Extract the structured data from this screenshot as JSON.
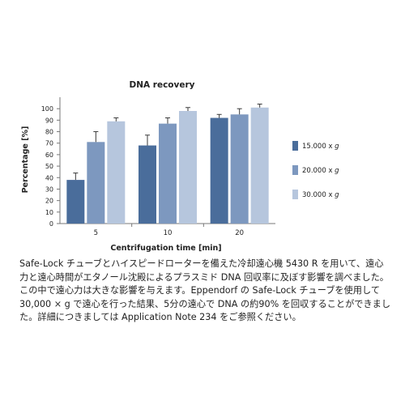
{
  "chart_data": {
    "type": "bar",
    "title": "DNA recovery",
    "xlabel": "Centrifugation time [min]",
    "ylabel": "Percentage [%]",
    "ylim": [
      0,
      110
    ],
    "yticks": [
      "0",
      "10",
      "20",
      "30",
      "40",
      "50",
      "60",
      "70",
      "80",
      "90",
      "100"
    ],
    "categories": [
      "5",
      "10",
      "20"
    ],
    "grid": false,
    "legend_position": "right",
    "series": [
      {
        "name": "15.000 x g",
        "color": "#4a6d9b",
        "values": [
          38,
          68,
          92
        ],
        "errors": [
          6,
          9,
          3
        ]
      },
      {
        "name": "20.000 x g",
        "color": "#7d98bf",
        "values": [
          71,
          87,
          95
        ],
        "errors": [
          9,
          5,
          5
        ]
      },
      {
        "name": "30.000 x g",
        "color": "#b6c6dd",
        "values": [
          89,
          98,
          101
        ],
        "errors": [
          3,
          3,
          3
        ]
      }
    ]
  },
  "caption": "Safe-Lock チューブとハイスピードローターを備えた冷却遠心機 5430 R を用いて、遠心力と遠心時間がエタノール沈殿によるプラスミド DNA 回収率に及ぼす影響を調べました。この中で遠心力は大きな影響を与えます。Eppendorf の Safe-Lock チューブを使用して 30,000 × g で遠心を行った結果、5分の遠心で DNA の約90% を回収することができました。詳細につきましては Application Note 234 をご参照ください。"
}
